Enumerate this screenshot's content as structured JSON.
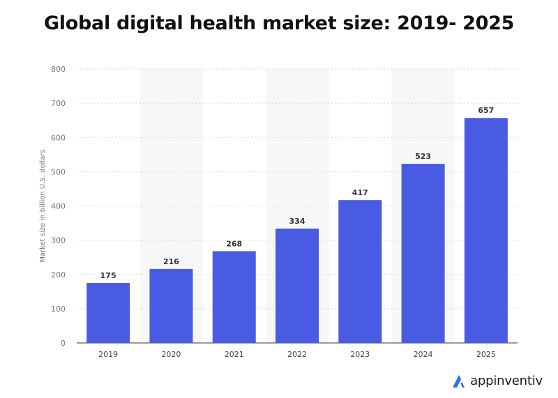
{
  "chart_data": {
    "type": "bar",
    "title": "Global digital health market size: 2019- 2025",
    "ylabel": "Market size in billion U.S. dollars",
    "xlabel": "",
    "categories": [
      "2019",
      "2020",
      "2021",
      "2022",
      "2023",
      "2024",
      "2025"
    ],
    "values": [
      175,
      216,
      268,
      334,
      417,
      523,
      657
    ],
    "ylim": [
      0,
      800
    ],
    "yticks": [
      0,
      100,
      200,
      300,
      400,
      500,
      600,
      700,
      800
    ],
    "grid": true,
    "bar_color": "#4a5be3",
    "show_data_labels": true
  },
  "branding": {
    "logo_text": "appinventiv",
    "logo_color": "#2f6fe8"
  }
}
